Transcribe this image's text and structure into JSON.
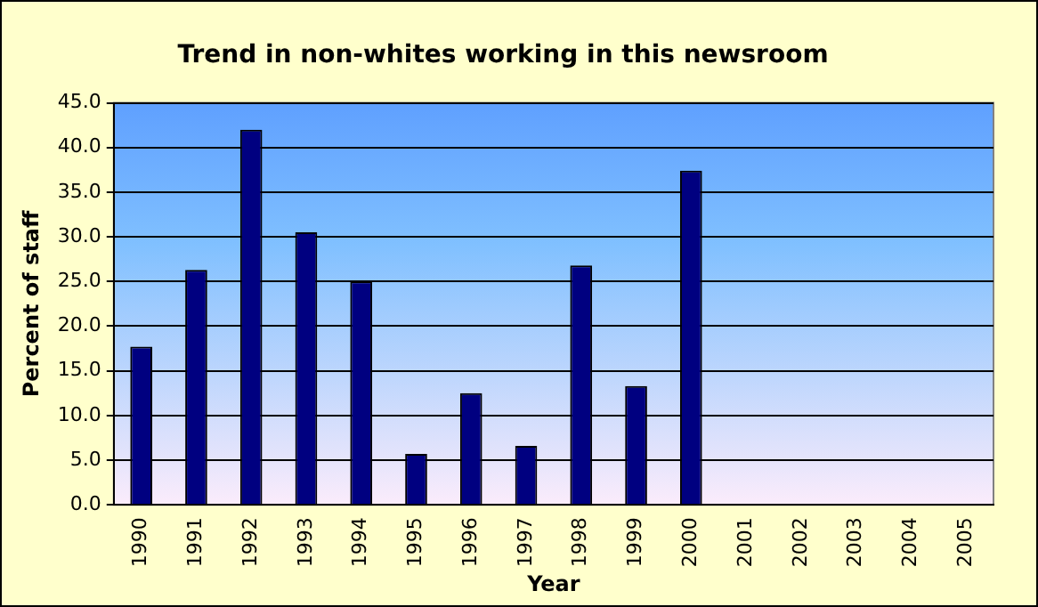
{
  "chart_data": {
    "type": "bar",
    "title": "Trend in non-whites working in this newsroom",
    "xlabel": "Year",
    "ylabel": "Percent of staff",
    "categories": [
      "1990",
      "1991",
      "1992",
      "1993",
      "1994",
      "1995",
      "1996",
      "1997",
      "1998",
      "1999",
      "2000",
      "2001",
      "2002",
      "2003",
      "2004",
      "2005"
    ],
    "values": [
      17.7,
      26.3,
      42.0,
      30.5,
      25.0,
      5.7,
      12.5,
      6.6,
      26.8,
      13.3,
      37.4,
      null,
      null,
      null,
      null,
      null
    ],
    "color": "#000080",
    "ylim": [
      0,
      45
    ],
    "yticks": [
      {
        "value": 0,
        "label": "0.0"
      },
      {
        "value": 5,
        "label": "5.0"
      },
      {
        "value": 10,
        "label": "10.0"
      },
      {
        "value": 15,
        "label": "15.0"
      },
      {
        "value": 20,
        "label": "20.0"
      },
      {
        "value": 25,
        "label": "25.0"
      },
      {
        "value": 30,
        "label": "30.0"
      },
      {
        "value": 35,
        "label": "35.0"
      },
      {
        "value": 40,
        "label": "40.0"
      },
      {
        "value": 45,
        "label": "45.0"
      }
    ],
    "grid": "y",
    "legend": false
  }
}
